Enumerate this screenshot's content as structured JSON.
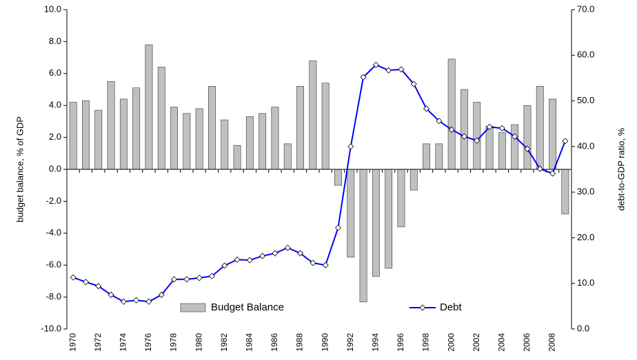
{
  "chart_data": {
    "type": "bar-line",
    "y_label": "budget balance, % of GDP",
    "y2_label": "debt-to-GDP ratio, %",
    "categories": [
      "1970",
      null,
      "1972",
      null,
      "1974",
      null,
      "1976",
      null,
      "1978",
      null,
      "1980",
      null,
      "1982",
      null,
      "1984",
      null,
      "1986",
      null,
      "1988",
      null,
      "1990",
      null,
      "1992",
      null,
      "1994",
      null,
      "1996",
      null,
      "1998",
      null,
      "2000",
      null,
      "2002",
      null,
      "2004",
      null,
      "2006",
      null,
      "2008",
      null
    ],
    "series": [
      {
        "name": "Budget Balance",
        "type": "bar",
        "color": "#c0c0c0",
        "values": [
          4.2,
          4.3,
          3.7,
          5.5,
          4.4,
          5.1,
          7.8,
          6.4,
          3.9,
          3.5,
          3.8,
          5.2,
          3.1,
          1.5,
          3.3,
          3.5,
          3.9,
          1.6,
          5.2,
          6.8,
          5.4,
          -1.0,
          -5.5,
          -8.3,
          -6.7,
          -6.2,
          -3.6,
          -1.3,
          1.6,
          1.6,
          6.9,
          5.0,
          4.2,
          2.7,
          2.3,
          2.8,
          4.0,
          5.2,
          4.4,
          -2.8
        ]
      },
      {
        "name": "Debt",
        "type": "line",
        "axis": "y2",
        "color": "#0000ff",
        "values": [
          11.3,
          10.3,
          9.4,
          7.5,
          6.0,
          6.3,
          6.0,
          7.5,
          10.9,
          10.9,
          11.2,
          11.6,
          13.9,
          15.2,
          15.1,
          16.0,
          16.6,
          17.8,
          16.6,
          14.5,
          14.0,
          22.2,
          40.0,
          55.2,
          57.9,
          56.7,
          56.9,
          53.7,
          48.3,
          45.6,
          43.7,
          42.2,
          41.3,
          44.3,
          44.0,
          42.2,
          39.5,
          35.1,
          34.1,
          41.2
        ]
      }
    ],
    "ylim": [
      -10,
      10
    ],
    "yticks": [
      {
        "value": -10,
        "label": "-10.0"
      },
      {
        "value": -8,
        "label": "-8.0"
      },
      {
        "value": -6,
        "label": "-6.0"
      },
      {
        "value": -4,
        "label": "-4.0"
      },
      {
        "value": -2,
        "label": "-2.0"
      },
      {
        "value": 0,
        "label": "0.0"
      },
      {
        "value": 2,
        "label": "2.0"
      },
      {
        "value": 4,
        "label": "4.0"
      },
      {
        "value": 6,
        "label": "6.0"
      },
      {
        "value": 8,
        "label": "8.0"
      },
      {
        "value": 10,
        "label": "10.0"
      }
    ],
    "y2lim": [
      0,
      70
    ],
    "y2ticks": [
      {
        "value": 0,
        "label": "0.0"
      },
      {
        "value": 10,
        "label": "10.0"
      },
      {
        "value": 20,
        "label": "20.0"
      },
      {
        "value": 30,
        "label": "30.0"
      },
      {
        "value": 40,
        "label": "40.0"
      },
      {
        "value": 50,
        "label": "50.0"
      },
      {
        "value": 60,
        "label": "60.0"
      },
      {
        "value": 70,
        "label": "70.0"
      }
    ],
    "legend": "bottom"
  }
}
